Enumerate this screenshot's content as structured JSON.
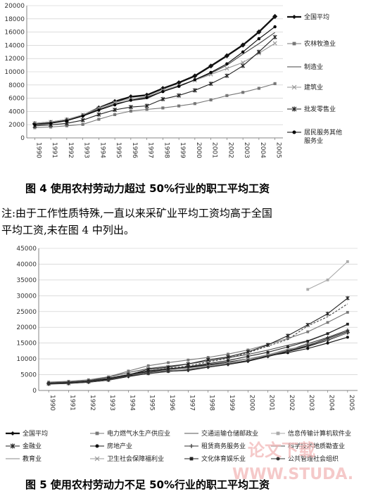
{
  "captions": {
    "fig4": "图 4   使用农村劳动力超过 50%行业的职工平均工资",
    "note_line1": "注:由于工作性质特殊,一直以来采矿业平均工资均高于全国",
    "note_line2": "平均工资,未在图 4 中列出。",
    "fig5": "图 5   使用农村劳动力不足 50%行业的职工平均工资"
  },
  "watermark": {
    "text1": "论文下载",
    "text2": "WWW.STUDA."
  },
  "chart_data": [
    {
      "type": "line",
      "title": "",
      "xlabel": "",
      "ylabel": "",
      "x": [
        "1990",
        "1991",
        "1992",
        "1993",
        "1994",
        "1995",
        "1996",
        "1997",
        "1998",
        "1999",
        "2000",
        "2001",
        "2002",
        "2003",
        "2004",
        "2005"
      ],
      "yticks": [
        "0",
        "2000",
        "4000",
        "6000",
        "8000",
        "10000",
        "12000",
        "14000",
        "16000",
        "18000",
        "20000"
      ],
      "ylim": [
        0,
        20000
      ],
      "grid": true,
      "legend_position": "right",
      "series": [
        {
          "name": "全国平均",
          "color": "#111111",
          "marker": "diamond",
          "values": [
            2140,
            2340,
            2711,
            3371,
            4538,
            5500,
            6210,
            6470,
            7479,
            8346,
            9371,
            10870,
            12422,
            14040,
            16024,
            18364
          ]
        },
        {
          "name": "农林牧渔业",
          "color": "#777777",
          "marker": "square",
          "values": [
            1541,
            1652,
            1828,
            2042,
            2819,
            3522,
            4050,
            4311,
            4528,
            4832,
            5184,
            5741,
            6398,
            6884,
            7497,
            8207
          ]
        },
        {
          "name": "制造业",
          "color": "#444444",
          "marker": "none",
          "values": [
            2073,
            2289,
            2635,
            3348,
            4283,
            5169,
            5642,
            5933,
            7064,
            7794,
            8750,
            9774,
            11001,
            12671,
            14251,
            15934
          ]
        },
        {
          "name": "建筑业",
          "color": "#999999",
          "marker": "x",
          "values": [
            2200,
            2420,
            2780,
            3500,
            4500,
            5350,
            5900,
            6200,
            7200,
            7950,
            8700,
            9600,
            10500,
            11400,
            12800,
            14300
          ]
        },
        {
          "name": "批发零售业",
          "color": "#222222",
          "marker": "star",
          "values": [
            1818,
            1981,
            2204,
            2680,
            3537,
            4248,
            4661,
            4845,
            5865,
            6417,
            7190,
            8192,
            9398,
            10894,
            13012,
            15241
          ]
        },
        {
          "name": "居民服务其他服务业",
          "color": "#000000",
          "marker": "circle",
          "values": [
            2000,
            2200,
            2600,
            3300,
            4200,
            5000,
            5700,
            6100,
            7000,
            7800,
            8800,
            9900,
            11200,
            13000,
            15000,
            16800
          ]
        }
      ]
    },
    {
      "type": "line",
      "title": "",
      "xlabel": "",
      "ylabel": "",
      "x": [
        "1990",
        "1991",
        "1992",
        "1993",
        "1994",
        "1995",
        "1996",
        "1997",
        "1998",
        "1999",
        "2000",
        "2001",
        "2002",
        "2003",
        "2004",
        "2005"
      ],
      "yticks": [
        "0",
        "5000",
        "10000",
        "15000",
        "20000",
        "25000",
        "30000",
        "35000",
        "40000",
        "45000"
      ],
      "ylim": [
        0,
        45000
      ],
      "grid": true,
      "legend_position": "bottom",
      "series": [
        {
          "name": "全国平均",
          "color": "#111111",
          "marker": "diamond",
          "values": [
            2140,
            2340,
            2711,
            3371,
            4538,
            5500,
            6210,
            6470,
            7479,
            8346,
            9371,
            10870,
            12422,
            14040,
            16024,
            18364
          ]
        },
        {
          "name": "电力燃气水生产供应业",
          "color": "#777777",
          "marker": "square",
          "values": [
            2656,
            2922,
            3392,
            4319,
            6155,
            7843,
            8816,
            9649,
            10478,
            11513,
            12830,
            14590,
            16440,
            18574,
            21543,
            24750
          ]
        },
        {
          "name": "交通运输仓储邮政业",
          "color": "#555555",
          "marker": "none",
          "values": [
            2426,
            2686,
            3114,
            4273,
            5690,
            6948,
            7703,
            8393,
            9367,
            10373,
            11402,
            12765,
            14316,
            15753,
            18071,
            20911
          ]
        },
        {
          "name": "信息传输计算机软件业",
          "color": "#aaaaaa",
          "marker": "square",
          "values": [
            null,
            null,
            null,
            null,
            null,
            null,
            null,
            null,
            null,
            null,
            null,
            null,
            null,
            32000,
            35000,
            40800
          ]
        },
        {
          "name": "金融业",
          "color": "#222222",
          "marker": "star",
          "values": [
            2097,
            2255,
            2829,
            3740,
            4939,
            6712,
            7376,
            8406,
            9734,
            10633,
            12203,
            14430,
            17360,
            20780,
            24299,
            29229
          ]
        },
        {
          "name": "房地产业",
          "color": "#111111",
          "marker": "circle",
          "values": [
            2243,
            2507,
            2954,
            3907,
            5058,
            6234,
            6913,
            7330,
            8185,
            9024,
            10034,
            10963,
            11956,
            13270,
            14998,
            16860
          ]
        },
        {
          "name": "租赁商务服务业",
          "color": "#333333",
          "marker": "plus",
          "values": [
            2300,
            2500,
            2900,
            3700,
            4800,
            5900,
            6700,
            7200,
            8000,
            8900,
            10000,
            11300,
            12700,
            14800,
            16800,
            19100
          ]
        },
        {
          "name": "科学技术地质勘查业",
          "color": "#444444",
          "marker": "none",
          "values": [
            2403,
            2651,
            3032,
            3843,
            5048,
            6262,
            7030,
            7782,
            9026,
            10222,
            11913,
            14053,
            16129,
            20442,
            23351,
            27434
          ]
        },
        {
          "name": "教育业",
          "color": "#888888",
          "marker": "none",
          "values": [
            2117,
            2243,
            2715,
            3278,
            4923,
            5435,
            6101,
            6599,
            7474,
            8510,
            9482,
            11297,
            13044,
            14189,
            16085,
            18259
          ]
        },
        {
          "name": "卫生社会保障福利业",
          "color": "#999999",
          "marker": "x",
          "values": [
            2149,
            2310,
            2714,
            3280,
            4703,
            5405,
            6168,
            6769,
            7715,
            8678,
            10000,
            11200,
            12600,
            14400,
            16200,
            18500
          ]
        },
        {
          "name": "文化体育娱乐业",
          "color": "#222222",
          "marker": "square",
          "values": [
            2250,
            2500,
            2900,
            3700,
            4900,
            6100,
            6800,
            7500,
            8500,
            9500,
            10800,
            12100,
            13800,
            15600,
            18000,
            21000
          ]
        },
        {
          "name": "公共管理社会组织",
          "color": "#333333",
          "marker": "circle",
          "values": [
            2100,
            2300,
            2700,
            3300,
            4700,
            5300,
            6000,
            6500,
            7400,
            8300,
            9500,
            10800,
            12500,
            14200,
            16500,
            18700
          ]
        }
      ]
    }
  ]
}
